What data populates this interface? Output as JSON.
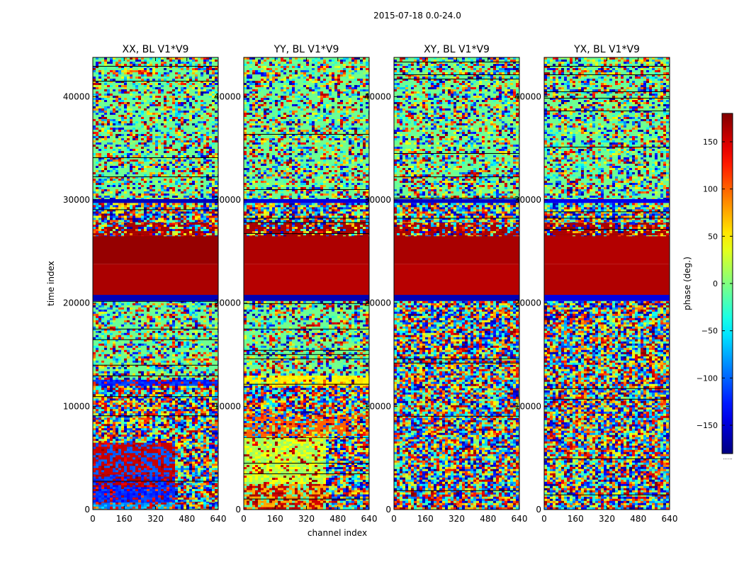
{
  "chart_data": {
    "type": "heatmap",
    "suptitle": "2015-07-18 0.0-24.0",
    "xlabel": "channel index",
    "ylabel": "time index",
    "x_range": [
      0,
      640
    ],
    "y_range": [
      0,
      43800
    ],
    "x_ticks": [
      "0",
      "160",
      "320",
      "480",
      "640"
    ],
    "x_tick_values": [
      0,
      160,
      320,
      480,
      640
    ],
    "y_ticks": [
      "0",
      "10000",
      "20000",
      "30000",
      "40000"
    ],
    "y_tick_values": [
      0,
      10000,
      20000,
      30000,
      40000
    ],
    "colormap": "jet",
    "panels": [
      {
        "title": "XX, BL V1*V9",
        "bands": [
          {
            "t0": 0,
            "t1": 700,
            "left": "cyan-blue",
            "right": "noise",
            "split": 410
          },
          {
            "t0": 700,
            "t1": 2200,
            "left": "blue",
            "right": "noise",
            "split": 410
          },
          {
            "t0": 2200,
            "t1": 3400,
            "left": "blue-red",
            "right": "noise",
            "split": 410
          },
          {
            "t0": 3400,
            "t1": 6500,
            "left": "red-blue",
            "right": "noise",
            "split": 410
          },
          {
            "t0": 6500,
            "t1": 12000,
            "left": "noise",
            "right": "noise",
            "split": 0
          },
          {
            "t0": 12000,
            "t1": 12600,
            "left": "blue",
            "right": "blue",
            "split": 0
          },
          {
            "t0": 12600,
            "t1": 20200,
            "left": "green-noise",
            "right": "green-noise",
            "split": 0
          },
          {
            "t0": 20200,
            "t1": 20800,
            "left": "navy",
            "right": "navy",
            "split": 0
          },
          {
            "t0": 20800,
            "t1": 23800,
            "left": "darkred",
            "right": "darkred",
            "split": 0
          },
          {
            "t0": 23800,
            "t1": 26500,
            "left": "darkred",
            "right": "darkred",
            "split": 0
          },
          {
            "t0": 26500,
            "t1": 27800,
            "left": "darkred-noise",
            "right": "darkred-noise",
            "split": 0
          },
          {
            "t0": 27800,
            "t1": 29700,
            "left": "noise",
            "right": "noise",
            "split": 0
          },
          {
            "t0": 29700,
            "t1": 30100,
            "left": "navy",
            "right": "navy",
            "split": 0
          },
          {
            "t0": 30100,
            "t1": 43800,
            "left": "green-noise",
            "right": "green-noise",
            "split": 0
          }
        ]
      },
      {
        "title": "YY, BL V1*V9",
        "bands": [
          {
            "t0": 0,
            "t1": 2500,
            "left": "red-yellow",
            "right": "noise",
            "split": 410
          },
          {
            "t0": 2500,
            "t1": 7000,
            "left": "green-yellow",
            "right": "noise",
            "split": 410
          },
          {
            "t0": 7000,
            "t1": 9200,
            "left": "orange-noise",
            "right": "orange-noise",
            "split": 0
          },
          {
            "t0": 9200,
            "t1": 12000,
            "left": "noise",
            "right": "noise",
            "split": 0
          },
          {
            "t0": 12000,
            "t1": 13000,
            "left": "yellow",
            "right": "yellow",
            "split": 0
          },
          {
            "t0": 13000,
            "t1": 20200,
            "left": "green-noise",
            "right": "green-noise",
            "split": 0
          },
          {
            "t0": 20200,
            "t1": 20800,
            "left": "navy",
            "right": "navy",
            "split": 0
          },
          {
            "t0": 20800,
            "t1": 23800,
            "left": "darkred",
            "right": "darkred",
            "split": 0
          },
          {
            "t0": 23800,
            "t1": 26500,
            "left": "darkred",
            "right": "darkred",
            "split": 0
          },
          {
            "t0": 26500,
            "t1": 27800,
            "left": "darkred-noise",
            "right": "darkred-noise",
            "split": 0
          },
          {
            "t0": 27800,
            "t1": 29700,
            "left": "noise",
            "right": "noise",
            "split": 0
          },
          {
            "t0": 29700,
            "t1": 30100,
            "left": "navy",
            "right": "navy",
            "split": 0
          },
          {
            "t0": 30100,
            "t1": 43800,
            "left": "green-noise",
            "right": "green-noise",
            "split": 0
          }
        ]
      },
      {
        "title": "XY, BL V1*V9",
        "bands": [
          {
            "t0": 0,
            "t1": 20200,
            "left": "noise",
            "right": "noise",
            "split": 0
          },
          {
            "t0": 20200,
            "t1": 20800,
            "left": "navy",
            "right": "navy",
            "split": 0
          },
          {
            "t0": 20800,
            "t1": 23800,
            "left": "darkred",
            "right": "darkred",
            "split": 0
          },
          {
            "t0": 23800,
            "t1": 26500,
            "left": "darkred",
            "right": "darkred",
            "split": 0
          },
          {
            "t0": 26500,
            "t1": 27800,
            "left": "darkred-noise",
            "right": "darkred-noise",
            "split": 0
          },
          {
            "t0": 27800,
            "t1": 29700,
            "left": "noise",
            "right": "noise",
            "split": 0
          },
          {
            "t0": 29700,
            "t1": 30100,
            "left": "navy",
            "right": "navy",
            "split": 0
          },
          {
            "t0": 30100,
            "t1": 43800,
            "left": "green-noise",
            "right": "green-noise",
            "split": 0
          }
        ]
      },
      {
        "title": "YX, BL V1*V9",
        "bands": [
          {
            "t0": 0,
            "t1": 20200,
            "left": "noise",
            "right": "noise",
            "split": 0
          },
          {
            "t0": 20200,
            "t1": 20800,
            "left": "navy",
            "right": "navy",
            "split": 0
          },
          {
            "t0": 20800,
            "t1": 23800,
            "left": "darkred",
            "right": "darkred",
            "split": 0
          },
          {
            "t0": 23800,
            "t1": 26500,
            "left": "darkred",
            "right": "darkred",
            "split": 0
          },
          {
            "t0": 26500,
            "t1": 27800,
            "left": "darkred-noise",
            "right": "darkred-noise",
            "split": 0
          },
          {
            "t0": 27800,
            "t1": 29700,
            "left": "noise",
            "right": "noise",
            "split": 0
          },
          {
            "t0": 29700,
            "t1": 30100,
            "left": "navy",
            "right": "navy",
            "split": 0
          },
          {
            "t0": 30100,
            "t1": 43800,
            "left": "green-noise",
            "right": "green-noise",
            "split": 0
          }
        ]
      }
    ],
    "colorbar": {
      "label": "phase (deg.)",
      "range": [
        -180,
        180
      ],
      "ticks": [
        "150",
        "100",
        "50",
        "0",
        "−50",
        "−100",
        "−150"
      ],
      "tick_values": [
        150,
        100,
        50,
        0,
        -50,
        -100,
        -150
      ],
      "offset_text": "......"
    }
  }
}
